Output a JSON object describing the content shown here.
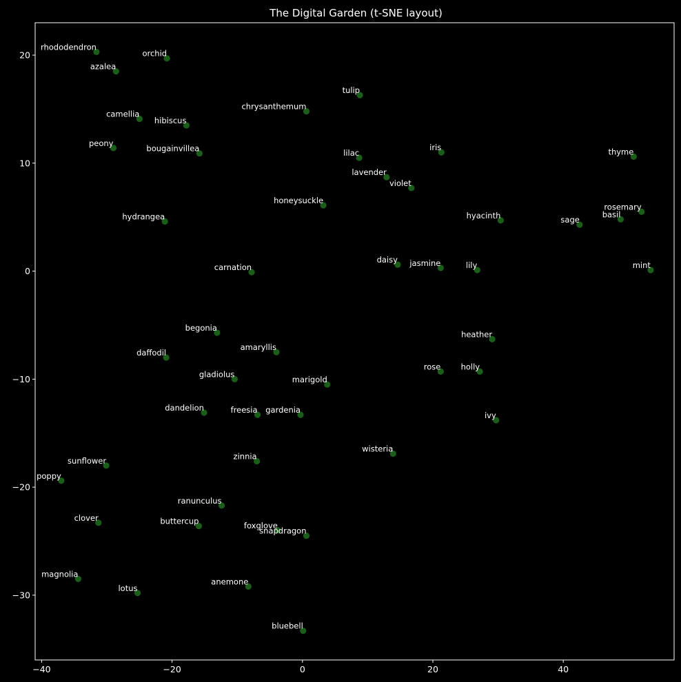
{
  "colors": {
    "background": "#000000",
    "axes_frame": "#ffffff",
    "text": "#ffffff",
    "point": "#1f6f1f"
  },
  "chart_data": {
    "type": "scatter",
    "title": "The Digital Garden (t-SNE layout)",
    "xlabel": "",
    "ylabel": "",
    "xlim": [
      -41,
      57
    ],
    "ylim": [
      -36,
      23
    ],
    "xticks": [
      -40,
      -20,
      0,
      20,
      40
    ],
    "yticks": [
      -30,
      -20,
      -10,
      0,
      10,
      20
    ],
    "grid": false,
    "legend": "none",
    "points": [
      {
        "label": "rhododendron",
        "x": -31.6,
        "y": 20.3
      },
      {
        "label": "orchid",
        "x": -20.8,
        "y": 19.7
      },
      {
        "label": "azalea",
        "x": -28.6,
        "y": 18.5
      },
      {
        "label": "tulip",
        "x": 8.8,
        "y": 16.3
      },
      {
        "label": "chrysanthemum",
        "x": 0.6,
        "y": 14.8
      },
      {
        "label": "camellia",
        "x": -25.0,
        "y": 14.1
      },
      {
        "label": "hibiscus",
        "x": -17.8,
        "y": 13.5
      },
      {
        "label": "peony",
        "x": -29.0,
        "y": 11.4
      },
      {
        "label": "bougainvillea",
        "x": -15.8,
        "y": 10.9
      },
      {
        "label": "iris",
        "x": 21.3,
        "y": 11.0
      },
      {
        "label": "lilac",
        "x": 8.7,
        "y": 10.5
      },
      {
        "label": "thyme",
        "x": 50.8,
        "y": 10.6
      },
      {
        "label": "lavender",
        "x": 12.9,
        "y": 8.7
      },
      {
        "label": "violet",
        "x": 16.7,
        "y": 7.7
      },
      {
        "label": "honeysuckle",
        "x": 3.2,
        "y": 6.1
      },
      {
        "label": "rosemary",
        "x": 52.0,
        "y": 5.5
      },
      {
        "label": "basil",
        "x": 48.8,
        "y": 4.8
      },
      {
        "label": "hyacinth",
        "x": 30.4,
        "y": 4.7
      },
      {
        "label": "hydrangea",
        "x": -21.1,
        "y": 4.6
      },
      {
        "label": "sage",
        "x": 42.5,
        "y": 4.3
      },
      {
        "label": "daisy",
        "x": 14.6,
        "y": 0.6
      },
      {
        "label": "jasmine",
        "x": 21.2,
        "y": 0.3
      },
      {
        "label": "lily",
        "x": 26.8,
        "y": 0.1
      },
      {
        "label": "mint",
        "x": 53.4,
        "y": 0.1
      },
      {
        "label": "carnation",
        "x": -7.8,
        "y": -0.1
      },
      {
        "label": "begonia",
        "x": -13.1,
        "y": -5.7
      },
      {
        "label": "heather",
        "x": 29.1,
        "y": -6.3
      },
      {
        "label": "amaryllis",
        "x": -4.0,
        "y": -7.5
      },
      {
        "label": "daffodil",
        "x": -20.9,
        "y": -8.0
      },
      {
        "label": "rose",
        "x": 21.2,
        "y": -9.3
      },
      {
        "label": "holly",
        "x": 27.2,
        "y": -9.3
      },
      {
        "label": "gladiolus",
        "x": -10.4,
        "y": -10.0
      },
      {
        "label": "marigold",
        "x": 3.8,
        "y": -10.5
      },
      {
        "label": "dandelion",
        "x": -15.1,
        "y": -13.1
      },
      {
        "label": "freesia",
        "x": -6.9,
        "y": -13.3
      },
      {
        "label": "gardenia",
        "x": -0.3,
        "y": -13.3
      },
      {
        "label": "ivy",
        "x": 29.7,
        "y": -13.8
      },
      {
        "label": "wisteria",
        "x": 13.9,
        "y": -16.9
      },
      {
        "label": "zinnia",
        "x": -7.0,
        "y": -17.6
      },
      {
        "label": "sunflower",
        "x": -30.1,
        "y": -18.0
      },
      {
        "label": "poppy",
        "x": -37.0,
        "y": -19.4
      },
      {
        "label": "ranunculus",
        "x": -12.4,
        "y": -21.7
      },
      {
        "label": "clover",
        "x": -31.3,
        "y": -23.3
      },
      {
        "label": "buttercup",
        "x": -15.9,
        "y": -23.6
      },
      {
        "label": "foxglove",
        "x": -3.8,
        "y": -24.0
      },
      {
        "label": "snapdragon",
        "x": 0.6,
        "y": -24.5
      },
      {
        "label": "magnolia",
        "x": -34.4,
        "y": -28.5
      },
      {
        "label": "anemone",
        "x": -8.3,
        "y": -29.2
      },
      {
        "label": "lotus",
        "x": -25.3,
        "y": -29.8
      },
      {
        "label": "bluebell",
        "x": 0.1,
        "y": -33.3
      }
    ]
  }
}
